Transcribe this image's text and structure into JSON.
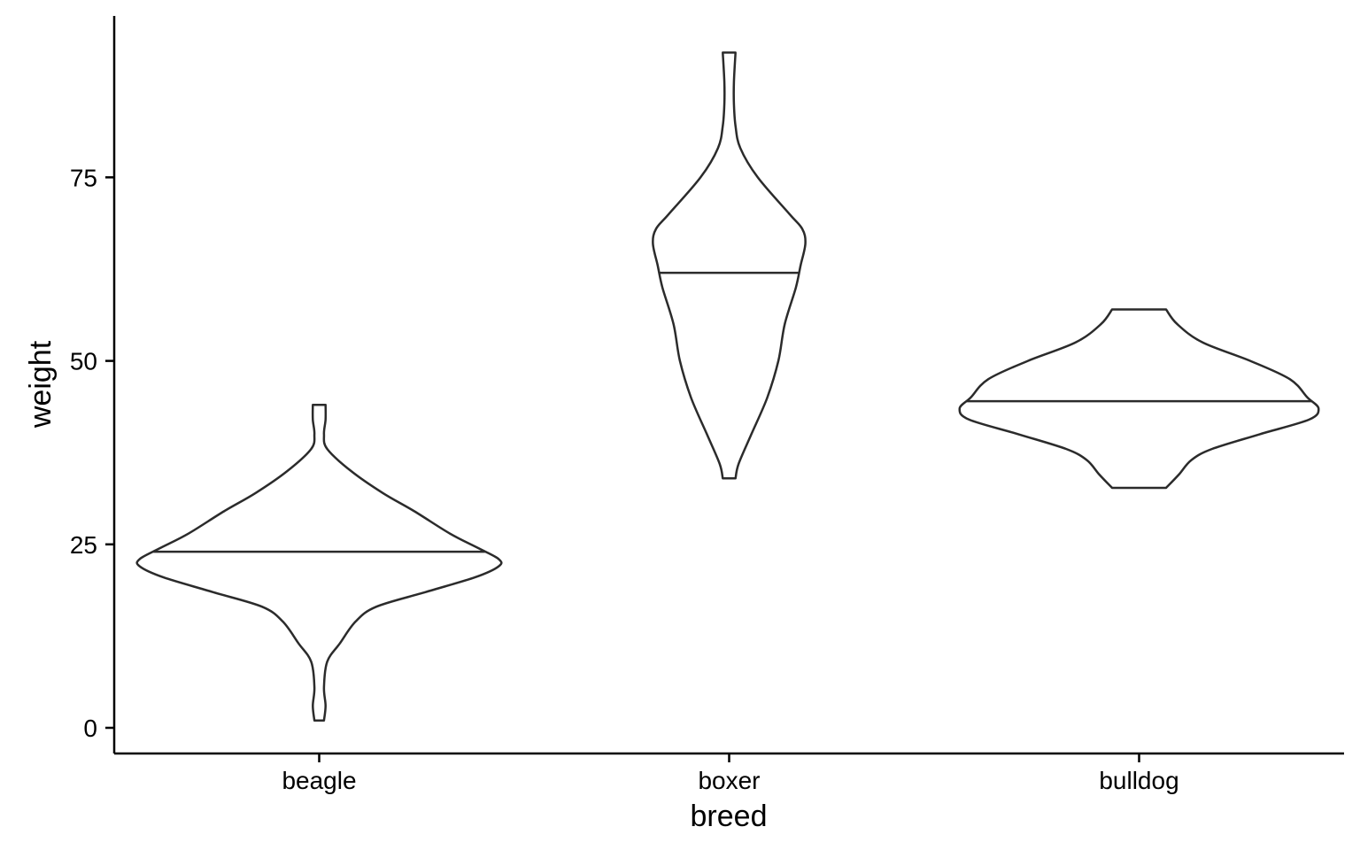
{
  "chart_data": {
    "type": "violin",
    "title": "",
    "xlabel": "breed",
    "ylabel": "weight",
    "categories": [
      "beagle",
      "boxer",
      "bulldog"
    ],
    "ylim": [
      -3.5,
      97
    ],
    "yticks": [
      0,
      25,
      50,
      75
    ],
    "ytick_labels": [
      "0",
      "25",
      "50",
      "75"
    ],
    "color": "#2b2b2b",
    "violins": [
      {
        "name": "beagle",
        "median": 24,
        "profile": [
          {
            "y": 1,
            "w": 0.015
          },
          {
            "y": 3,
            "w": 0.02
          },
          {
            "y": 5.5,
            "w": 0.015
          },
          {
            "y": 9,
            "w": 0.025
          },
          {
            "y": 11.5,
            "w": 0.065
          },
          {
            "y": 14.5,
            "w": 0.115
          },
          {
            "y": 16.5,
            "w": 0.18
          },
          {
            "y": 18.5,
            "w": 0.335
          },
          {
            "y": 20.5,
            "w": 0.49
          },
          {
            "y": 22,
            "w": 0.565
          },
          {
            "y": 23,
            "w": 0.565
          },
          {
            "y": 24.5,
            "w": 0.5
          },
          {
            "y": 26.5,
            "w": 0.41
          },
          {
            "y": 29.5,
            "w": 0.3
          },
          {
            "y": 32,
            "w": 0.2
          },
          {
            "y": 35,
            "w": 0.1
          },
          {
            "y": 38,
            "w": 0.025
          },
          {
            "y": 40,
            "w": 0.015
          },
          {
            "y": 42,
            "w": 0.02
          },
          {
            "y": 44,
            "w": 0.02
          }
        ]
      },
      {
        "name": "boxer",
        "median": 62,
        "profile": [
          {
            "y": 34,
            "w": 0.02
          },
          {
            "y": 36,
            "w": 0.03
          },
          {
            "y": 40,
            "w": 0.07
          },
          {
            "y": 45,
            "w": 0.12
          },
          {
            "y": 50,
            "w": 0.155
          },
          {
            "y": 55,
            "w": 0.175
          },
          {
            "y": 60,
            "w": 0.21
          },
          {
            "y": 63,
            "w": 0.225
          },
          {
            "y": 66,
            "w": 0.24
          },
          {
            "y": 68,
            "w": 0.23
          },
          {
            "y": 70,
            "w": 0.19
          },
          {
            "y": 75,
            "w": 0.09
          },
          {
            "y": 79,
            "w": 0.035
          },
          {
            "y": 82,
            "w": 0.02
          },
          {
            "y": 85,
            "w": 0.015
          },
          {
            "y": 88,
            "w": 0.015
          },
          {
            "y": 92,
            "w": 0.02
          }
        ]
      },
      {
        "name": "bulldog",
        "median": 44.5,
        "profile": [
          {
            "y": 32.7,
            "w": 0.085
          },
          {
            "y": 34.5,
            "w": 0.125
          },
          {
            "y": 36.5,
            "w": 0.165
          },
          {
            "y": 38,
            "w": 0.23
          },
          {
            "y": 40,
            "w": 0.38
          },
          {
            "y": 42,
            "w": 0.535
          },
          {
            "y": 43.5,
            "w": 0.565
          },
          {
            "y": 45,
            "w": 0.53
          },
          {
            "y": 47.5,
            "w": 0.475
          },
          {
            "y": 50,
            "w": 0.35
          },
          {
            "y": 52.5,
            "w": 0.2
          },
          {
            "y": 55,
            "w": 0.12
          },
          {
            "y": 57,
            "w": 0.085
          }
        ]
      }
    ]
  }
}
